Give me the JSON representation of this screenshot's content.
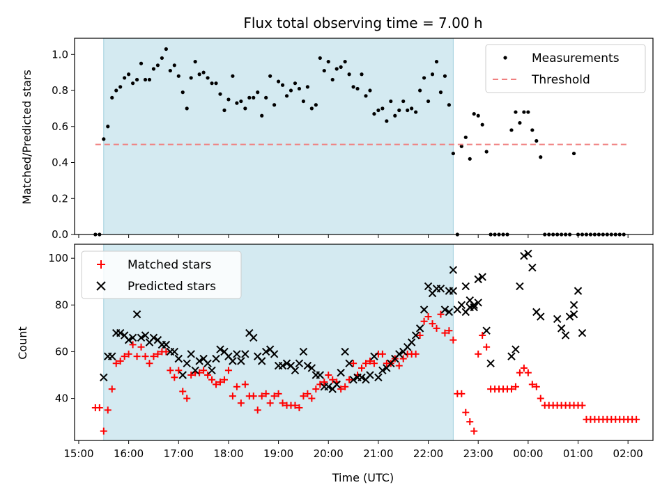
{
  "title": "Flux total observing time = 7.00 h",
  "chart_data": [
    {
      "type": "scatter",
      "panel": "top",
      "ylabel": "Matched/Predicted stars",
      "xlim": [
        "14:55",
        "02:30"
      ],
      "ylim": [
        0,
        1.09
      ],
      "yticks": [
        0.0,
        0.2,
        0.4,
        0.6,
        0.8,
        1.0
      ],
      "ytick_labels": [
        "0.0",
        "0.2",
        "0.4",
        "0.6",
        "0.8",
        "1.0"
      ],
      "highlight_span": [
        "15:30",
        "22:30"
      ],
      "highlight_color": "#d4eaf1",
      "legend_position": "top-right",
      "series": [
        {
          "name": "Measurements",
          "marker": "dot",
          "color": "#000000",
          "points": [
            [
              "15:20",
              0.0
            ],
            [
              "15:25",
              0.0
            ],
            [
              "15:30",
              0.53
            ],
            [
              "15:35",
              0.6
            ],
            [
              "15:40",
              0.76
            ],
            [
              "15:45",
              0.8
            ],
            [
              "15:50",
              0.82
            ],
            [
              "15:55",
              0.87
            ],
            [
              "16:00",
              0.89
            ],
            [
              "16:05",
              0.84
            ],
            [
              "16:10",
              0.86
            ],
            [
              "16:15",
              0.95
            ],
            [
              "16:20",
              0.86
            ],
            [
              "16:25",
              0.86
            ],
            [
              "16:30",
              0.92
            ],
            [
              "16:35",
              0.94
            ],
            [
              "16:40",
              0.98
            ],
            [
              "16:45",
              1.03
            ],
            [
              "16:50",
              0.91
            ],
            [
              "16:55",
              0.94
            ],
            [
              "17:00",
              0.88
            ],
            [
              "17:05",
              0.79
            ],
            [
              "17:10",
              0.7
            ],
            [
              "17:15",
              0.87
            ],
            [
              "17:20",
              0.96
            ],
            [
              "17:25",
              0.89
            ],
            [
              "17:30",
              0.9
            ],
            [
              "17:35",
              0.87
            ],
            [
              "17:40",
              0.84
            ],
            [
              "17:45",
              0.84
            ],
            [
              "17:50",
              0.78
            ],
            [
              "17:55",
              0.69
            ],
            [
              "18:00",
              0.75
            ],
            [
              "18:05",
              0.88
            ],
            [
              "18:10",
              0.73
            ],
            [
              "18:15",
              0.74
            ],
            [
              "18:20",
              0.7
            ],
            [
              "18:25",
              0.76
            ],
            [
              "18:30",
              0.76
            ],
            [
              "18:35",
              0.79
            ],
            [
              "18:40",
              0.66
            ],
            [
              "18:45",
              0.76
            ],
            [
              "18:50",
              0.88
            ],
            [
              "18:55",
              0.72
            ],
            [
              "19:00",
              0.85
            ],
            [
              "19:05",
              0.83
            ],
            [
              "19:10",
              0.77
            ],
            [
              "19:15",
              0.8
            ],
            [
              "19:20",
              0.84
            ],
            [
              "19:25",
              0.81
            ],
            [
              "19:30",
              0.74
            ],
            [
              "19:35",
              0.82
            ],
            [
              "19:40",
              0.7
            ],
            [
              "19:45",
              0.72
            ],
            [
              "19:50",
              0.98
            ],
            [
              "19:55",
              0.91
            ],
            [
              "20:00",
              0.96
            ],
            [
              "20:05",
              0.86
            ],
            [
              "20:10",
              0.92
            ],
            [
              "20:15",
              0.93
            ],
            [
              "20:20",
              0.96
            ],
            [
              "20:25",
              0.89
            ],
            [
              "20:30",
              0.82
            ],
            [
              "20:35",
              0.81
            ],
            [
              "20:40",
              0.89
            ],
            [
              "20:45",
              0.77
            ],
            [
              "20:50",
              0.8
            ],
            [
              "20:55",
              0.67
            ],
            [
              "21:00",
              0.69
            ],
            [
              "21:05",
              0.7
            ],
            [
              "21:10",
              0.63
            ],
            [
              "21:15",
              0.74
            ],
            [
              "21:20",
              0.66
            ],
            [
              "21:25",
              0.69
            ],
            [
              "21:30",
              0.74
            ],
            [
              "21:35",
              0.69
            ],
            [
              "21:40",
              0.7
            ],
            [
              "21:45",
              0.68
            ],
            [
              "21:50",
              0.8
            ],
            [
              "21:55",
              0.87
            ],
            [
              "22:00",
              0.74
            ],
            [
              "22:05",
              0.89
            ],
            [
              "22:10",
              0.96
            ],
            [
              "22:15",
              0.79
            ],
            [
              "22:20",
              0.88
            ],
            [
              "22:25",
              0.72
            ],
            [
              "22:30",
              0.45
            ],
            [
              "22:35",
              0.0
            ],
            [
              "22:40",
              0.49
            ],
            [
              "22:45",
              0.54
            ],
            [
              "22:50",
              0.42
            ],
            [
              "22:55",
              0.67
            ],
            [
              "23:00",
              0.66
            ],
            [
              "23:05",
              0.61
            ],
            [
              "23:10",
              0.46
            ],
            [
              "23:15",
              0.0
            ],
            [
              "23:20",
              0.0
            ],
            [
              "23:25",
              0.0
            ],
            [
              "23:30",
              0.0
            ],
            [
              "23:35",
              0.0
            ],
            [
              "23:40",
              0.58
            ],
            [
              "23:45",
              0.68
            ],
            [
              "23:50",
              0.62
            ],
            [
              "23:55",
              0.68
            ],
            [
              "00:00",
              0.68
            ],
            [
              "00:05",
              0.58
            ],
            [
              "00:10",
              0.52
            ],
            [
              "00:15",
              0.43
            ],
            [
              "00:20",
              0.0
            ],
            [
              "00:25",
              0.0
            ],
            [
              "00:30",
              0.0
            ],
            [
              "00:35",
              0.0
            ],
            [
              "00:40",
              0.0
            ],
            [
              "00:45",
              0.0
            ],
            [
              "00:50",
              0.0
            ],
            [
              "00:55",
              0.45
            ],
            [
              "01:00",
              0.0
            ],
            [
              "01:05",
              0.0
            ],
            [
              "01:10",
              0.0
            ],
            [
              "01:15",
              0.0
            ],
            [
              "01:20",
              0.0
            ],
            [
              "01:25",
              0.0
            ],
            [
              "01:30",
              0.0
            ],
            [
              "01:35",
              0.0
            ],
            [
              "01:40",
              0.0
            ],
            [
              "01:45",
              0.0
            ],
            [
              "01:50",
              0.0
            ],
            [
              "01:55",
              0.0
            ]
          ]
        },
        {
          "name": "Threshold",
          "type": "line",
          "style": "dashed",
          "color": "#f08080",
          "x": [
            "15:20",
            "02:00"
          ],
          "y": [
            0.5,
            0.5
          ]
        }
      ]
    },
    {
      "type": "scatter",
      "panel": "bottom",
      "xlabel": "Time (UTC)",
      "ylabel": "Count",
      "xlim": [
        "14:55",
        "02:30"
      ],
      "ylim": [
        22,
        106
      ],
      "yticks": [
        40,
        60,
        80,
        100
      ],
      "xticks": [
        "15:00",
        "16:00",
        "17:00",
        "18:00",
        "19:00",
        "20:00",
        "21:00",
        "22:00",
        "23:00",
        "00:00",
        "01:00",
        "02:00"
      ],
      "highlight_span": [
        "15:30",
        "22:30"
      ],
      "highlight_color": "#d4eaf1",
      "legend_position": "top-left",
      "series": [
        {
          "name": "Matched stars",
          "marker": "plus",
          "color": "#ff0000",
          "values": [
            36,
            36,
            26,
            35,
            44,
            55,
            56,
            58,
            59,
            63,
            58,
            62,
            58,
            55,
            58,
            59,
            60,
            60,
            52,
            49,
            52,
            43,
            40,
            50,
            51,
            51,
            52,
            50,
            48,
            46,
            47,
            48,
            52,
            41,
            45,
            38,
            46,
            41,
            41,
            35,
            41,
            42,
            38,
            41,
            42,
            38,
            37,
            37,
            37,
            36,
            41,
            42,
            40,
            44,
            46,
            47,
            50,
            48,
            47,
            44,
            45,
            48,
            55,
            50,
            53,
            55,
            56,
            55,
            59,
            59,
            55,
            55,
            57,
            54,
            57,
            59,
            59,
            59,
            67,
            73,
            75,
            72,
            70,
            76,
            68,
            69,
            65,
            42,
            42,
            34,
            30,
            26,
            59,
            67,
            62,
            44,
            44,
            44,
            44,
            44,
            44,
            45,
            51,
            53,
            51,
            46,
            45,
            40,
            37,
            37,
            37,
            37,
            37,
            37,
            37,
            37,
            37,
            37,
            31,
            31,
            31,
            31,
            31,
            31,
            31,
            31,
            31,
            31,
            31,
            31,
            31
          ],
          "x_start": "15:20",
          "x_step_minutes": 5
        },
        {
          "name": "Predicted stars",
          "marker": "x",
          "color": "#000000",
          "values": [
            49,
            58,
            58,
            68,
            68,
            67,
            65,
            66,
            76,
            66,
            67,
            64,
            66,
            65,
            63,
            63,
            60,
            60,
            57,
            50,
            55,
            59,
            52,
            56,
            57,
            55,
            52,
            57,
            61,
            60,
            58,
            56,
            59,
            56,
            59,
            68,
            66,
            58,
            56,
            60,
            61,
            59,
            54,
            54,
            55,
            54,
            52,
            55,
            60,
            54,
            53,
            50,
            50,
            45,
            45,
            44,
            46,
            51,
            60,
            55,
            48,
            49,
            49,
            48,
            50,
            58,
            49,
            52,
            53,
            55,
            57,
            59,
            60,
            62,
            64,
            67,
            70,
            78,
            88,
            85,
            87,
            87,
            78,
            77,
            95,
            78,
            80,
            77,
            82,
            79,
            81,
            86,
            86,
            88,
            79,
            80,
            91,
            92,
            69,
            55,
            58,
            61,
            88,
            101,
            102,
            96,
            77,
            75,
            80,
            74,
            70,
            67,
            75,
            76,
            86,
            68
          ],
          "x_start": "15:30",
          "x_step_minutes": 5,
          "x_overrides": {
            "91": "22:25",
            "92": "22:30",
            "93": "22:45",
            "94": "22:50",
            "95": "22:55",
            "96": "23:00",
            "97": "23:05",
            "98": "23:10",
            "99": "23:15",
            "100": "23:40",
            "101": "23:45",
            "102": "23:50",
            "103": "23:55",
            "104": "00:00",
            "105": "00:05",
            "106": "00:10",
            "107": "00:15",
            "108": "00:55"
          }
        }
      ]
    }
  ]
}
